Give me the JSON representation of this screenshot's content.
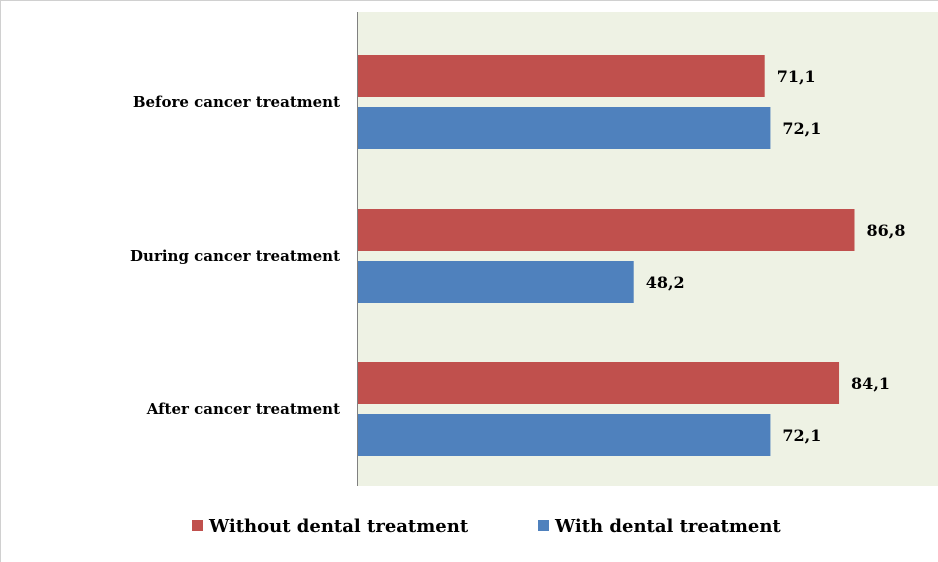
{
  "chart_data": {
    "type": "bar",
    "orientation": "horizontal",
    "categories": [
      "Before cancer treatment",
      "During cancer treatment",
      "After cancer treatment"
    ],
    "series": [
      {
        "name": "Without dental treatment",
        "values": [
          71.1,
          86.8,
          84.1
        ],
        "labels": [
          "71,1",
          "86,8",
          "84,1"
        ],
        "color": "#c0504d"
      },
      {
        "name": "With dental treatment",
        "values": [
          72.1,
          48.2,
          72.1
        ],
        "labels": [
          "72,1",
          "48,2",
          "72,1"
        ],
        "color": "#4f81bd"
      }
    ],
    "xlim": [
      0,
      100
    ],
    "grid": false,
    "legend": "bottom",
    "plot_background": "#eef2e4"
  }
}
